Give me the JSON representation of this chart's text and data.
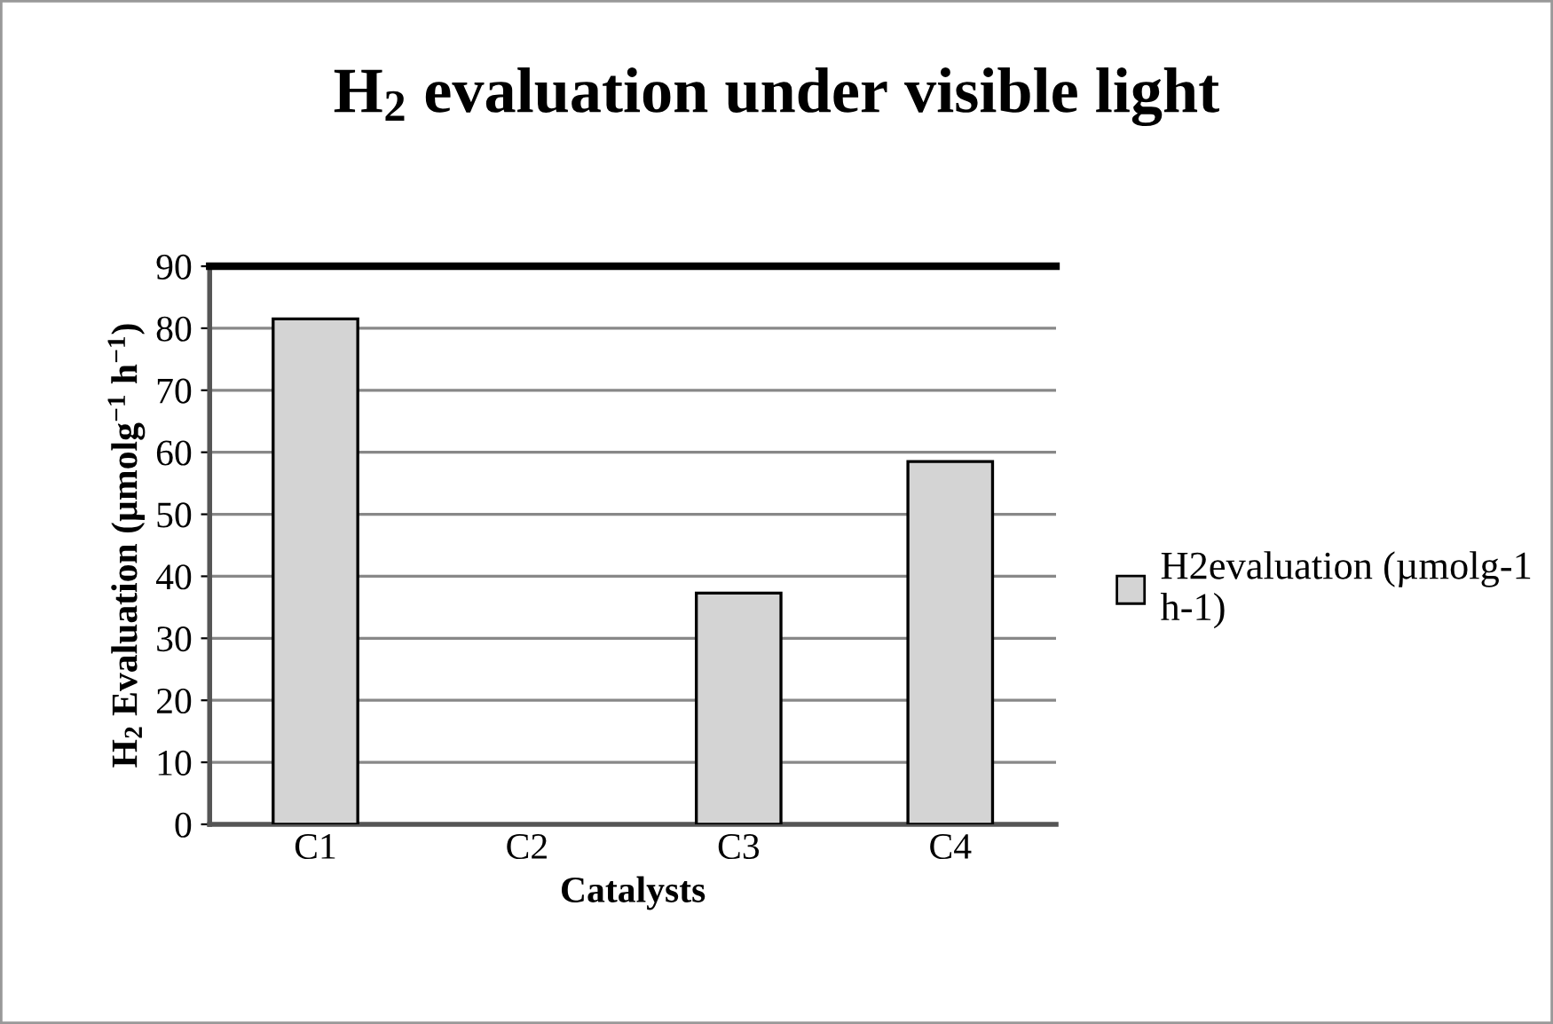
{
  "chart_data": {
    "type": "bar",
    "title": "H$_{2}$ evaluation under visible light",
    "xlabel": "Catalysts",
    "ylabel": "H$_{2}$ Evaluation (µmolg$^{−1}$ h$^{−1}$)",
    "categories": [
      "C1",
      "C2",
      "C3",
      "C4"
    ],
    "series": [
      {
        "name": "H2evaluation (µmolg-1 h-1)",
        "color": "#d4d4d4",
        "values": [
          81.5,
          0,
          37.3,
          58.5
        ]
      }
    ],
    "ylim": [
      0,
      90
    ],
    "yticks": [
      0,
      10,
      20,
      30,
      40,
      50,
      60,
      70,
      80,
      90
    ],
    "grid": "y",
    "legend": "right"
  }
}
